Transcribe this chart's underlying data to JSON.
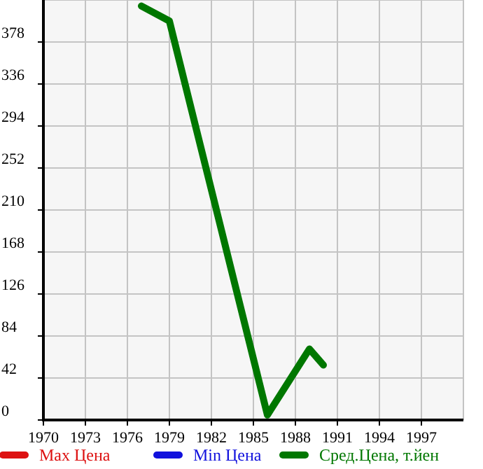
{
  "chart_data": {
    "type": "line",
    "xlim": [
      1970,
      2000
    ],
    "xticks": [
      1970,
      1973,
      1976,
      1979,
      1982,
      1985,
      1988,
      1991,
      1994,
      1997
    ],
    "ylim": [
      0,
      420
    ],
    "yticks": [
      0,
      42,
      84,
      126,
      168,
      210,
      252,
      294,
      336,
      378
    ],
    "grid": true,
    "legend": "bottom",
    "marker": "none",
    "line_style": "solid",
    "series": [
      {
        "name": "Max Цена",
        "color": "#dd1111"
      },
      {
        "name": "Min Цена",
        "color": "#1111dd"
      },
      {
        "name": "Сред.Цена, т.йен",
        "color": "#007700",
        "x": [
          1977,
          1979,
          1986,
          1989,
          1990
        ],
        "values": [
          414,
          399,
          5,
          71,
          55
        ]
      }
    ]
  }
}
